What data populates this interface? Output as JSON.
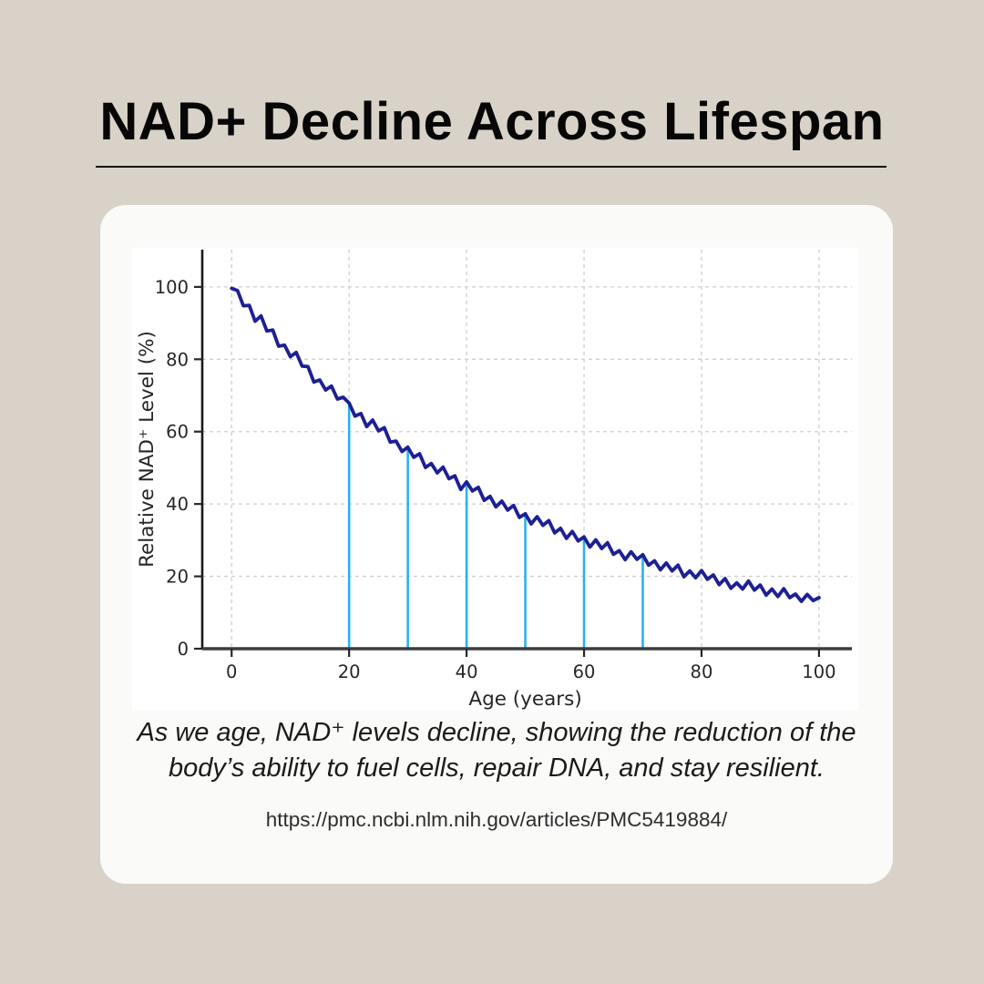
{
  "header": {
    "title": "NAD+ Decline Across Lifespan"
  },
  "caption": {
    "line1": "As we age, NAD⁺ levels decline, showing the reduction of the",
    "line2": "body’s ability to fuel cells, repair DNA, and stay resilient."
  },
  "source": {
    "url": "https://pmc.ncbi.nlm.nih.gov/articles/PMC5419884/"
  },
  "colors": {
    "page_background": "#d8d2c9",
    "card_background": "#fafaf9",
    "figure_background": "#ffffff",
    "curve": "#1d2093",
    "marker": "#2ab2ee",
    "grid": "#cfcfcf",
    "axis": "#3d3d3d",
    "tick_text": "#262626"
  },
  "chart_data": {
    "type": "line",
    "title": "",
    "xlabel": "Age (years)",
    "ylabel": "Relative NAD⁺ Level (%)",
    "xlim": [
      -5,
      105.6
    ],
    "ylim": [
      0,
      110.3
    ],
    "xticks": [
      0,
      20,
      40,
      60,
      80,
      100
    ],
    "yticks": [
      0,
      20,
      40,
      60,
      80,
      100
    ],
    "grid": true,
    "legend": "none",
    "line_color": "#1d2093",
    "marker_color": "#2ab2ee",
    "series": [
      {
        "name": "Relative NAD+ level (%)",
        "x": [
          0,
          1,
          2,
          3,
          4,
          5,
          6,
          7,
          8,
          9,
          10,
          11,
          12,
          13,
          14,
          15,
          16,
          17,
          18,
          19,
          20,
          21,
          22,
          23,
          24,
          25,
          26,
          27,
          28,
          29,
          30,
          31,
          32,
          33,
          34,
          35,
          36,
          37,
          38,
          39,
          40,
          41,
          42,
          43,
          44,
          45,
          46,
          47,
          48,
          49,
          50,
          51,
          52,
          53,
          54,
          55,
          56,
          57,
          58,
          59,
          60,
          61,
          62,
          63,
          64,
          65,
          66,
          67,
          68,
          69,
          70,
          71,
          72,
          73,
          74,
          75,
          76,
          77,
          78,
          79,
          80,
          81,
          82,
          83,
          84,
          85,
          86,
          87,
          88,
          89,
          90,
          91,
          92,
          93,
          94,
          95,
          96,
          97,
          98,
          99,
          100
        ],
        "y": [
          99.6,
          99.0,
          94.8,
          94.9,
          90.5,
          92.0,
          87.8,
          88.1,
          83.6,
          83.9,
          80.7,
          81.9,
          78.1,
          78.0,
          73.7,
          74.3,
          71.5,
          72.6,
          69.0,
          69.5,
          67.9,
          64.3,
          65.0,
          61.4,
          63.2,
          60.2,
          61.1,
          57.1,
          57.4,
          54.5,
          55.7,
          52.9,
          53.9,
          50.1,
          51.2,
          48.6,
          50.2,
          47.0,
          47.8,
          44.0,
          46.1,
          43.6,
          44.6,
          41.0,
          42.1,
          39.2,
          40.8,
          38.3,
          39.6,
          36.3,
          37.3,
          34.5,
          36.5,
          34.1,
          35.4,
          32.0,
          33.3,
          30.5,
          32.4,
          29.8,
          30.9,
          28.1,
          30.1,
          27.7,
          29.3,
          26.1,
          27.1,
          24.6,
          26.8,
          24.7,
          26.0,
          23.1,
          24.3,
          21.8,
          23.7,
          21.5,
          23.1,
          19.9,
          21.5,
          19.6,
          21.6,
          19.2,
          20.4,
          17.7,
          19.4,
          16.7,
          18.2,
          16.5,
          18.7,
          16.2,
          17.6,
          14.8,
          16.5,
          14.4,
          16.6,
          14.1,
          15.1,
          13.1,
          15.0,
          13.3,
          14.1
        ]
      }
    ],
    "decade_markers": [
      {
        "x": 20,
        "y": 67.9
      },
      {
        "x": 30,
        "y": 55.7
      },
      {
        "x": 40,
        "y": 46.1
      },
      {
        "x": 50,
        "y": 37.3
      },
      {
        "x": 60,
        "y": 30.9
      },
      {
        "x": 70,
        "y": 26.0
      }
    ]
  }
}
